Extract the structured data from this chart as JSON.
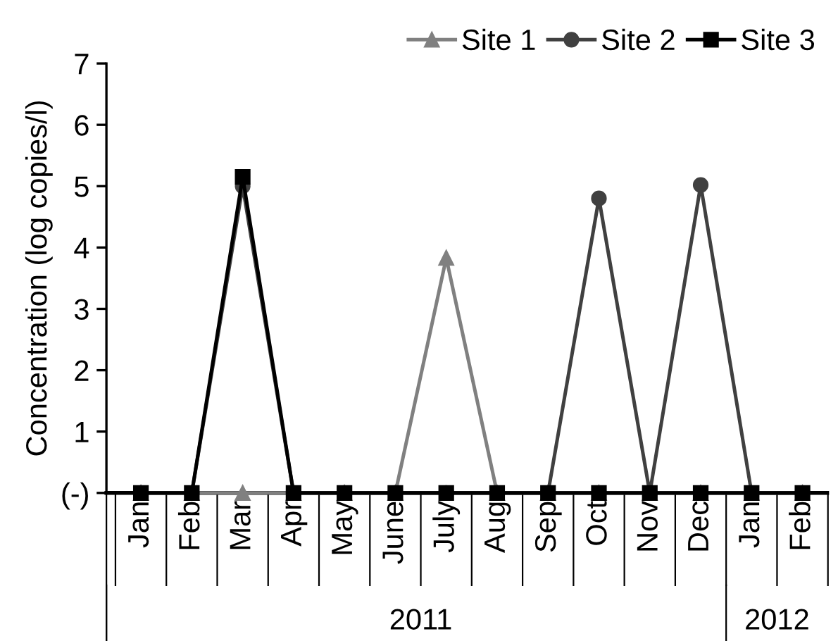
{
  "chart_data": {
    "type": "line",
    "ylabel": "Concentration (log copies/l)",
    "x": [
      "2011-01",
      "2011-02",
      "2011-03",
      "2011-04",
      "2011-05",
      "2011-06",
      "2011-07",
      "2011-08",
      "2011-09",
      "2011-10",
      "2011-11",
      "2011-12",
      "2012-01",
      "2012-02"
    ],
    "xticks": [
      {
        "value": "2011-01",
        "label": "Jan"
      },
      {
        "value": "2011-02",
        "label": "Feb"
      },
      {
        "value": "2011-03",
        "label": "Mar"
      },
      {
        "value": "2011-04",
        "label": "Apr"
      },
      {
        "value": "2011-05",
        "label": "May"
      },
      {
        "value": "2011-06",
        "label": "June"
      },
      {
        "value": "2011-07",
        "label": "July"
      },
      {
        "value": "2011-08",
        "label": "Aug"
      },
      {
        "value": "2011-09",
        "label": "Sep"
      },
      {
        "value": "2011-10",
        "label": "Oct"
      },
      {
        "value": "2011-11",
        "label": "Nov"
      },
      {
        "value": "2011-12",
        "label": "Dec"
      },
      {
        "value": "2012-01",
        "label": "Jan"
      },
      {
        "value": "2012-02",
        "label": "Feb"
      }
    ],
    "xlim": [
      "2010-12-11",
      "2012-02-16"
    ],
    "annotations": [
      "2011",
      "2012"
    ],
    "series": [
      {
        "name": "Site 1",
        "color": "#808080",
        "marker": "triangle",
        "values": [
          0,
          0,
          0,
          0,
          0,
          0,
          3.83,
          0,
          0,
          0,
          0,
          0,
          0,
          0
        ]
      },
      {
        "name": "Site 2",
        "color": "#404040",
        "marker": "circle",
        "values": [
          0,
          0,
          5.0,
          0,
          0,
          0,
          0,
          0,
          0,
          4.8,
          0,
          5.02,
          0,
          0
        ]
      },
      {
        "name": "Site 3",
        "color": "#000000",
        "marker": "square",
        "values": [
          0,
          0,
          5.15,
          0,
          0,
          0,
          0,
          0,
          0,
          0,
          0,
          0,
          0,
          0
        ]
      }
    ],
    "ylim": [
      0,
      7
    ],
    "yticks": [
      {
        "value": 0,
        "label": "(-)"
      },
      1,
      2,
      3,
      4,
      5,
      6,
      7
    ],
    "grid": false,
    "legend": "top right",
    "line_style": "solid"
  }
}
